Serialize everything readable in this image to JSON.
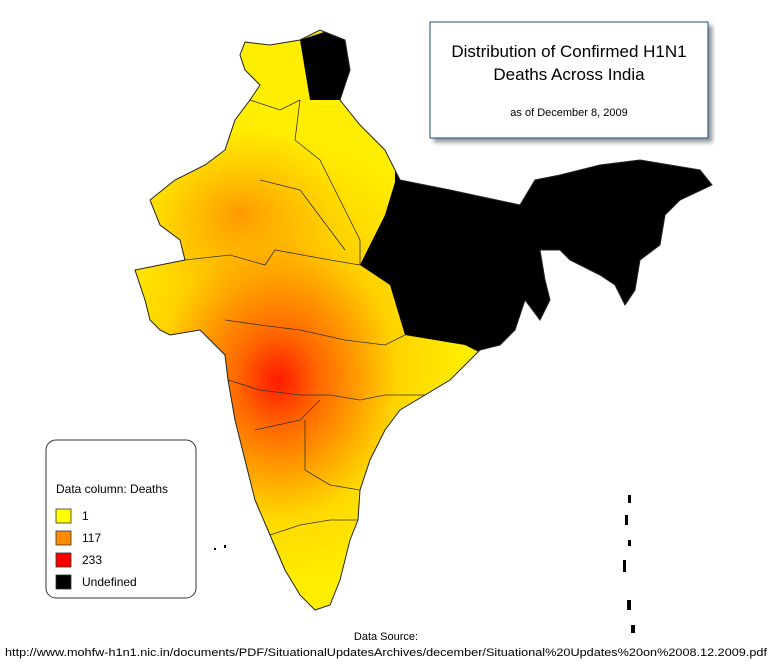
{
  "header": {
    "title_lines": [
      "Distribution of Confirmed H1N1",
      "Deaths Across India"
    ],
    "subtitle": "as of December 8, 2009"
  },
  "legend": {
    "title": "Data column: Deaths",
    "items": [
      {
        "label": "1",
        "color": "#ffff00"
      },
      {
        "label": "117",
        "color": "#ff8c00"
      },
      {
        "label": "233",
        "color": "#ff0000"
      },
      {
        "label": "Undefined",
        "color": "#000000"
      }
    ]
  },
  "source": {
    "label": "Data Source:",
    "url": "http://www.mohfw-h1n1.nic.in/documents/PDF/SituationalUpdatesArchives/december/Situational%20Updates%20on%2008.12.2009.pdf"
  }
}
